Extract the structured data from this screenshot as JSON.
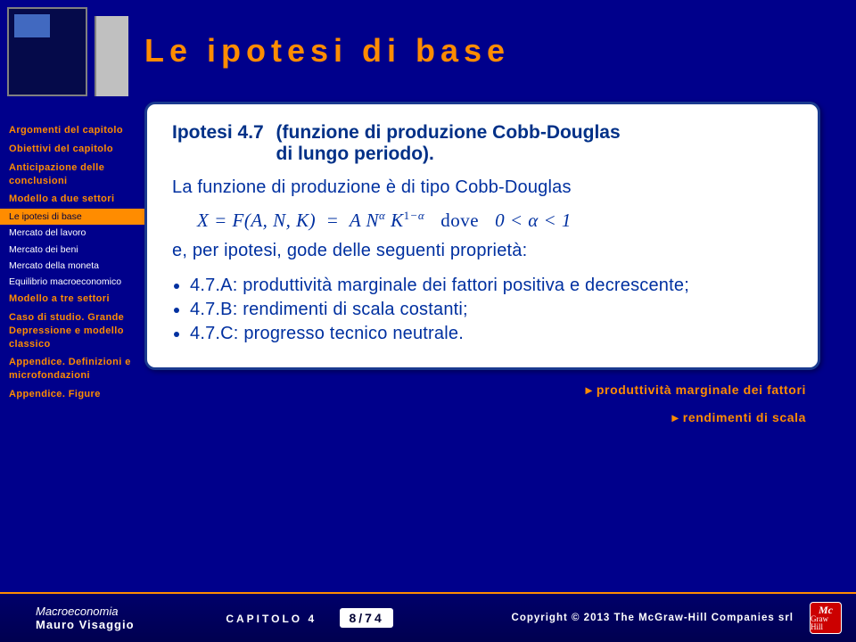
{
  "brandVertical": "McGraw-Hill",
  "sidebar": {
    "items": [
      {
        "label": "Argomenti del capitolo",
        "type": "item"
      },
      {
        "label": "Obiettivi del capitolo",
        "type": "item"
      },
      {
        "label": "Anticipazione delle conclusioni",
        "type": "item"
      },
      {
        "label": "Modello a due settori",
        "type": "item"
      },
      {
        "label": "Le ipotesi di base",
        "type": "sub",
        "active": true
      },
      {
        "label": "Mercato del lavoro",
        "type": "sub"
      },
      {
        "label": "Mercato dei beni",
        "type": "sub"
      },
      {
        "label": "Mercato della moneta",
        "type": "sub"
      },
      {
        "label": "Equilibrio macroeconomico",
        "type": "sub"
      },
      {
        "label": "Modello a tre settori",
        "type": "item"
      },
      {
        "label": "Caso di studio. Grande Depressione e modello classico",
        "type": "item"
      },
      {
        "label": "Appendice. Definizioni e microfondazioni",
        "type": "item"
      },
      {
        "label": "Appendice. Figure",
        "type": "item"
      }
    ]
  },
  "title": "Le ipotesi di base",
  "hypothesis": {
    "number": "Ipotesi 4.7",
    "name_line1": "(funzione di produzione Cobb-Douglas",
    "name_line2": "di lungo periodo).",
    "lead": "La funzione di produzione è di tipo Cobb-Douglas",
    "equation_html": "X = F(A, N, K)&nbsp;&nbsp;=&nbsp;&nbsp;A N<sup>α</sup> K<sup><span class='up'>1</span>−α</sup><span class='dove'>dove</span>0 &lt; α &lt; 1",
    "tail": "e, per ipotesi, gode delle seguenti proprietà:",
    "props": [
      "4.7.A: produttività marginale dei fattori positiva e decrescente;",
      "4.7.B: rendimenti di scala costanti;",
      "4.7.C: progresso tecnico neutrale."
    ]
  },
  "links": [
    "produttività marginale dei fattori",
    "rendimenti di scala"
  ],
  "footer": {
    "bookTitle": "Macroeconomia",
    "author": "Mauro Visaggio",
    "chapter": "CAPITOLO 4",
    "page": "8/74",
    "copyright": "Copyright © 2013 The McGraw-Hill Companies srl",
    "logoTop": "Mc",
    "logoBottom": "Graw Hill"
  }
}
